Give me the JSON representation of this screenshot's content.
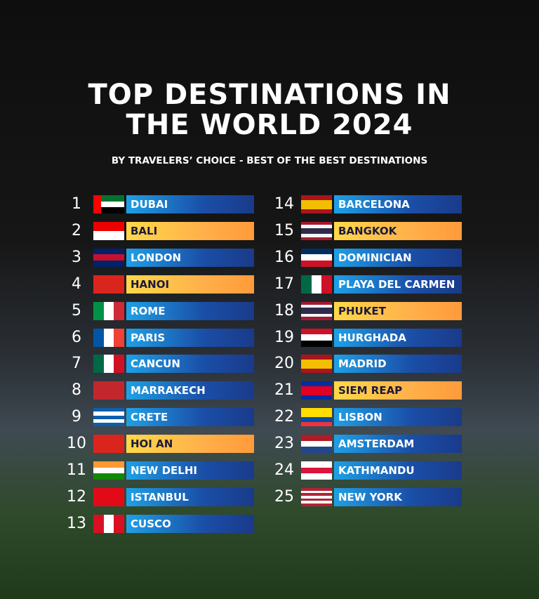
{
  "header": {
    "title_lines": [
      "TOP DESTINATIONS IN",
      "THE WORLD 2024"
    ],
    "subtitle": "BY TRAVELERS’ CHOICE - BEST OF THE BEST DESTINATIONS"
  },
  "entries": [
    {
      "rank": 1,
      "name": "DUBAI",
      "color": "blue"
    },
    {
      "rank": 2,
      "name": "BALI",
      "color": "orange"
    },
    {
      "rank": 3,
      "name": "LONDON",
      "color": "blue"
    },
    {
      "rank": 4,
      "name": "HANOI",
      "color": "orange"
    },
    {
      "rank": 5,
      "name": "ROME",
      "color": "blue"
    },
    {
      "rank": 6,
      "name": "PARIS",
      "color": "blue"
    },
    {
      "rank": 7,
      "name": "CANCUN",
      "color": "blue"
    },
    {
      "rank": 8,
      "name": "MARRAKECH",
      "color": "blue"
    },
    {
      "rank": 9,
      "name": "CRETE",
      "color": "blue"
    },
    {
      "rank": 10,
      "name": "HOI AN",
      "color": "orange"
    },
    {
      "rank": 11,
      "name": "NEW DELHI",
      "color": "blue"
    },
    {
      "rank": 12,
      "name": "ISTANBUL",
      "color": "blue"
    },
    {
      "rank": 13,
      "name": "CUSCO",
      "color": "blue"
    },
    {
      "rank": 14,
      "name": "BARCELONA",
      "color": "blue"
    },
    {
      "rank": 15,
      "name": "BANGKOK",
      "color": "orange"
    },
    {
      "rank": 16,
      "name": "DOMINICIAN",
      "color": "blue"
    },
    {
      "rank": 17,
      "name": "PLAYA DEL CARMEN",
      "color": "blue"
    },
    {
      "rank": 18,
      "name": "PHUKET",
      "color": "orange"
    },
    {
      "rank": 19,
      "name": "HURGHADA",
      "color": "blue"
    },
    {
      "rank": 20,
      "name": "MADRID",
      "color": "blue"
    },
    {
      "rank": 21,
      "name": "SIEM REAP",
      "color": "orange"
    },
    {
      "rank": 22,
      "name": "LISBON",
      "color": "blue"
    },
    {
      "rank": 23,
      "name": "AMSTERDAM",
      "color": "blue"
    },
    {
      "rank": 24,
      "name": "KATHMANDU",
      "color": "blue"
    },
    {
      "rank": 25,
      "name": "NEW YORK",
      "color": "blue"
    }
  ]
}
